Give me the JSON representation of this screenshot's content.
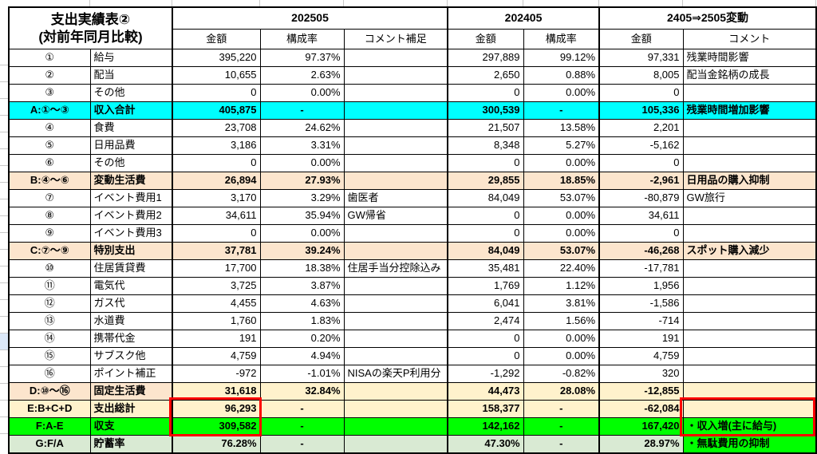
{
  "sheet": {
    "title": {
      "line1": "支出実績表②",
      "line2": "(対前年同月比較)"
    },
    "column_groups": [
      {
        "label": "202505"
      },
      {
        "label": "202405"
      },
      {
        "label": "2405⇒2505変動"
      }
    ],
    "sub_headers": [
      "金額",
      "構成率",
      "コメント補足",
      "金額",
      "構成率",
      "金額",
      "コメント"
    ],
    "rows": [
      {
        "id": "①",
        "item": "給与",
        "style": "normal",
        "c": [
          "395,220",
          "97.37%",
          "",
          "297,889",
          "99.12%",
          "97,331",
          "残業時間影響"
        ]
      },
      {
        "id": "②",
        "item": "配当",
        "style": "normal",
        "c": [
          "10,655",
          "2.63%",
          "",
          "2,650",
          "0.88%",
          "8,005",
          "配当金銘柄の成長"
        ]
      },
      {
        "id": "③",
        "item": "その他",
        "style": "normal",
        "c": [
          "0",
          "0.00%",
          "",
          "0",
          "0.00%",
          "0",
          ""
        ]
      },
      {
        "id": "A:①〜③",
        "item": "収入合計",
        "style": "cyan",
        "c": [
          "405,875",
          "-",
          "",
          "300,539",
          "-",
          "105,336",
          "残業時間増加影響"
        ]
      },
      {
        "id": "④",
        "item": "食費",
        "style": "normal",
        "c": [
          "23,708",
          "24.62%",
          "",
          "21,507",
          "13.58%",
          "2,201",
          ""
        ]
      },
      {
        "id": "⑤",
        "item": "日用品費",
        "style": "normal",
        "c": [
          "3,186",
          "3.31%",
          "",
          "8,348",
          "5.27%",
          "-5,162",
          ""
        ]
      },
      {
        "id": "⑥",
        "item": "その他",
        "style": "normal",
        "c": [
          "0",
          "0.00%",
          "",
          "0",
          "0.00%",
          "0",
          ""
        ]
      },
      {
        "id": "B:④〜⑥",
        "item": "変動生活費",
        "style": "peach",
        "c": [
          "26,894",
          "27.93%",
          "",
          "29,855",
          "18.85%",
          "-2,961",
          "日用品の購入抑制"
        ]
      },
      {
        "id": "⑦",
        "item": "イベント費用1",
        "style": "normal",
        "c": [
          "3,170",
          "3.29%",
          "歯医者",
          "84,049",
          "53.07%",
          "-80,879",
          "GW旅行"
        ]
      },
      {
        "id": "⑧",
        "item": "イベント費用2",
        "style": "normal",
        "c": [
          "34,611",
          "35.94%",
          "GW帰省",
          "0",
          "0.00%",
          "34,611",
          ""
        ]
      },
      {
        "id": "⑨",
        "item": "イベント費用3",
        "style": "normal",
        "c": [
          "0",
          "0.00%",
          "",
          "0",
          "0.00%",
          "0",
          ""
        ]
      },
      {
        "id": "C:⑦〜⑨",
        "item": "特別支出",
        "style": "peach",
        "c": [
          "37,781",
          "39.24%",
          "",
          "84,049",
          "53.07%",
          "-46,268",
          "スポット購入減少"
        ]
      },
      {
        "id": "⑩",
        "item": "住居賃貸費",
        "style": "normal",
        "c": [
          "17,700",
          "18.38%",
          "住居手当分控除込み",
          "35,481",
          "22.40%",
          "-17,781",
          ""
        ]
      },
      {
        "id": "⑪",
        "item": "電気代",
        "style": "normal",
        "c": [
          "3,725",
          "3.87%",
          "",
          "1,769",
          "1.12%",
          "1,956",
          ""
        ]
      },
      {
        "id": "⑫",
        "item": "ガス代",
        "style": "normal",
        "c": [
          "4,455",
          "4.63%",
          "",
          "6,041",
          "3.81%",
          "-1,586",
          ""
        ]
      },
      {
        "id": "⑬",
        "item": "水道費",
        "style": "normal",
        "c": [
          "1,760",
          "1.83%",
          "",
          "2,474",
          "1.56%",
          "-714",
          ""
        ]
      },
      {
        "id": "⑭",
        "item": "携帯代金",
        "style": "normal",
        "c": [
          "191",
          "0.20%",
          "",
          "0",
          "0.00%",
          "191",
          ""
        ]
      },
      {
        "id": "⑮",
        "item": "サブスク他",
        "style": "normal",
        "c": [
          "4,759",
          "4.94%",
          "",
          "0",
          "0.00%",
          "4,759",
          ""
        ]
      },
      {
        "id": "⑯",
        "item": "ポイント補正",
        "style": "normal",
        "c": [
          "-972",
          "-1.01%",
          "NISAの楽天P利用分",
          "-1,292",
          "-0.82%",
          "320",
          ""
        ]
      },
      {
        "id": "D:⑩〜⑯",
        "item": "固定生活費",
        "style": "peach_cream",
        "c": [
          "31,618",
          "32.84%",
          "",
          "44,473",
          "28.08%",
          "-12,855",
          ""
        ]
      },
      {
        "id": "E:B+C+D",
        "item": "支出総計",
        "style": "cream",
        "c": [
          "96,293",
          "-",
          "",
          "158,377",
          "-",
          "-62,084",
          ""
        ]
      },
      {
        "id": "F:A-E",
        "item": "収支",
        "style": "green",
        "c": [
          "309,582",
          "-",
          "",
          "142,162",
          "-",
          "167,420",
          "・収入増(主に給与)"
        ]
      },
      {
        "id": "G:F/A",
        "item": "貯蓄率",
        "style": "lightgreen",
        "c": [
          "76.28%",
          "-",
          "",
          "47.30%",
          "-",
          "28.97%",
          "・無駄費用の抑制"
        ]
      }
    ],
    "colors": {
      "income_total_row": "#00ffff",
      "section_peach": "#fce5cd",
      "section_cream": "#fff2cc",
      "balance_green": "#00ff00",
      "savings_lightgreen": "#d9ead3",
      "highlight_border": "#ff0000",
      "grid": "#000000"
    }
  }
}
